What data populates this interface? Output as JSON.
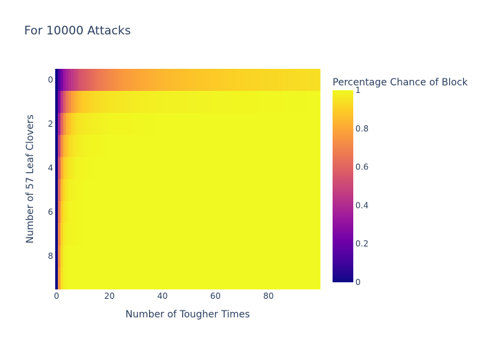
{
  "chart_data": {
    "type": "heatmap",
    "title": "For 10000 Attacks",
    "xlabel": "Number of Tougher Times",
    "ylabel": "Number of 57 Leaf Clovers",
    "colorbar": {
      "title": "Percentage Chance of Block",
      "range": [
        0,
        1
      ],
      "tick_labels": [
        "0",
        "0.2",
        "0.4",
        "0.6",
        "0.8",
        "1"
      ]
    },
    "x_range": [
      0,
      99
    ],
    "y_range": [
      0,
      9
    ],
    "y_reversed": true,
    "x_tick_labels": [
      "0",
      "20",
      "40",
      "60",
      "80"
    ],
    "y_tick_labels": [
      "0",
      "2",
      "4",
      "6",
      "8"
    ],
    "rows": [
      {
        "y": 0,
        "x_values": [
          0,
          1,
          2,
          3,
          5,
          7,
          9,
          12,
          15,
          20,
          25,
          30,
          40,
          50,
          60,
          70,
          80,
          99
        ],
        "z": [
          0.0,
          0.13,
          0.24,
          0.33,
          0.42,
          0.48,
          0.55,
          0.6,
          0.65,
          0.71,
          0.76,
          0.79,
          0.84,
          0.87,
          0.89,
          0.91,
          0.92,
          0.94
        ]
      },
      {
        "y": 1,
        "x_values": [
          0,
          1,
          2,
          3,
          4,
          6,
          8,
          10,
          15,
          20,
          30,
          40,
          60,
          99
        ],
        "z": [
          0.0,
          0.26,
          0.44,
          0.57,
          0.67,
          0.78,
          0.85,
          0.89,
          0.93,
          0.95,
          0.97,
          0.98,
          0.99,
          1.0
        ]
      },
      {
        "y": 2,
        "x_values": [
          0,
          1,
          2,
          3,
          4,
          6,
          8,
          12,
          20,
          40,
          99
        ],
        "z": [
          0.0,
          0.38,
          0.6,
          0.74,
          0.83,
          0.91,
          0.95,
          0.97,
          0.99,
          1.0,
          1.0
        ]
      },
      {
        "y": 3,
        "x_values": [
          0,
          1,
          2,
          3,
          5,
          8,
          12,
          20,
          99
        ],
        "z": [
          0.0,
          0.48,
          0.72,
          0.84,
          0.93,
          0.97,
          0.99,
          1.0,
          1.0
        ]
      },
      {
        "y": 4,
        "x_values": [
          0,
          1,
          2,
          3,
          5,
          8,
          15,
          99
        ],
        "z": [
          0.0,
          0.57,
          0.8,
          0.9,
          0.96,
          0.99,
          1.0,
          1.0
        ]
      },
      {
        "y": 5,
        "x_values": [
          0,
          1,
          2,
          3,
          5,
          10,
          99
        ],
        "z": [
          0.0,
          0.63,
          0.85,
          0.93,
          0.98,
          1.0,
          1.0
        ]
      },
      {
        "y": 6,
        "x_values": [
          0,
          1,
          2,
          3,
          5,
          10,
          99
        ],
        "z": [
          0.0,
          0.68,
          0.89,
          0.95,
          0.99,
          1.0,
          1.0
        ]
      },
      {
        "y": 7,
        "x_values": [
          0,
          1,
          2,
          3,
          5,
          10,
          99
        ],
        "z": [
          0.0,
          0.72,
          0.91,
          0.97,
          0.99,
          1.0,
          1.0
        ]
      },
      {
        "y": 8,
        "x_values": [
          0,
          1,
          2,
          3,
          5,
          10,
          99
        ],
        "z": [
          0.0,
          0.75,
          0.93,
          0.98,
          1.0,
          1.0,
          1.0
        ]
      },
      {
        "y": 9,
        "x_values": [
          0,
          1,
          2,
          3,
          5,
          10,
          99
        ],
        "z": [
          0.0,
          0.78,
          0.94,
          0.98,
          1.0,
          1.0,
          1.0
        ]
      }
    ],
    "colorscale": [
      [
        0.0,
        "#0d0887"
      ],
      [
        0.1111,
        "#46039f"
      ],
      [
        0.2222,
        "#7201a8"
      ],
      [
        0.3333,
        "#9c179e"
      ],
      [
        0.4444,
        "#bd3786"
      ],
      [
        0.5556,
        "#d8576b"
      ],
      [
        0.6667,
        "#ed7953"
      ],
      [
        0.7778,
        "#fb9f3a"
      ],
      [
        0.8889,
        "#fdca26"
      ],
      [
        1.0,
        "#f0f921"
      ]
    ]
  }
}
